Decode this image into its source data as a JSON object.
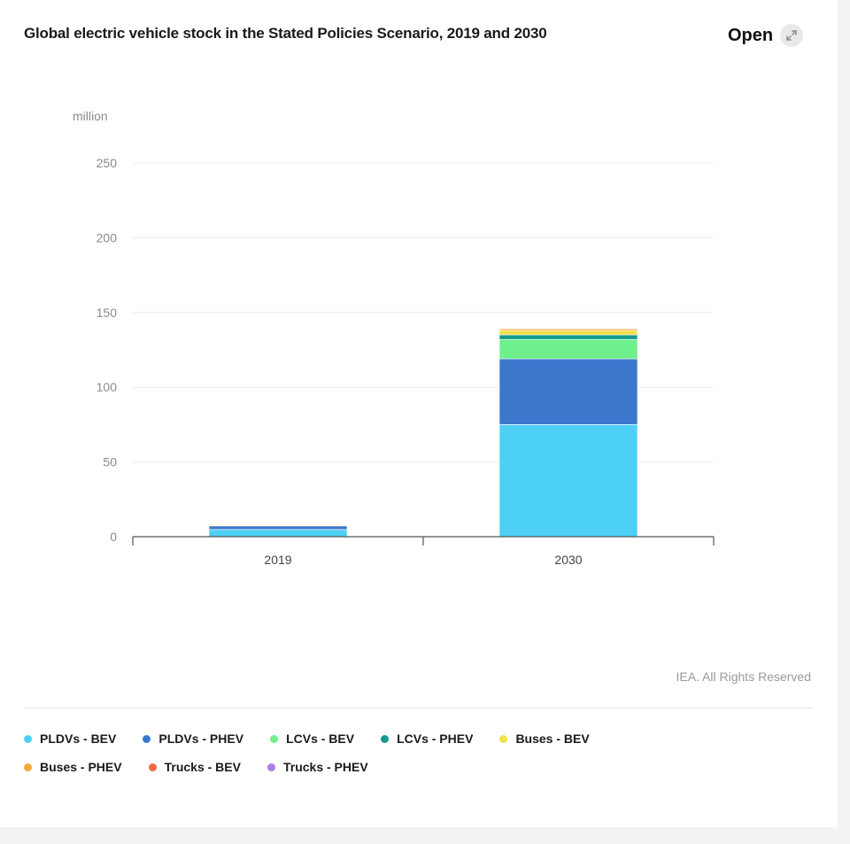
{
  "header": {
    "title": "Global electric vehicle stock in the Stated Policies Scenario, 2019 and 2030",
    "open_label": "Open",
    "open_icon": "expand-icon"
  },
  "credit": "IEA. All Rights Reserved",
  "chart_data": {
    "type": "bar",
    "stacked": true,
    "title": "Global electric vehicle stock in the Stated Policies Scenario, 2019 and 2030",
    "ylabel": "million",
    "ylim": [
      0,
      250
    ],
    "yticks": [
      "0",
      "50",
      "100",
      "150",
      "200",
      "250"
    ],
    "grid": true,
    "legend_position": "bottom",
    "categories": [
      "2019",
      "2030"
    ],
    "series": [
      {
        "name": "PLDVs - BEV",
        "color": "#4dd0f5",
        "values": [
          4.8,
          75
        ]
      },
      {
        "name": "PLDVs - PHEV",
        "color": "#3b78cc",
        "values": [
          2.4,
          44
        ]
      },
      {
        "name": "LCVs - BEV",
        "color": "#6ef08c",
        "values": [
          0.4,
          13
        ]
      },
      {
        "name": "LCVs - PHEV",
        "color": "#129a8e",
        "values": [
          0.05,
          3
        ]
      },
      {
        "name": "Buses - BEV",
        "color": "#f3e04a",
        "values": [
          0.5,
          3
        ]
      },
      {
        "name": "Buses - PHEV",
        "color": "#f5a83a",
        "values": [
          0.05,
          1
        ]
      },
      {
        "name": "Trucks - BEV",
        "color": "#f06a3e",
        "values": [
          0.01,
          0.5
        ]
      },
      {
        "name": "Trucks - PHEV",
        "color": "#a97de8",
        "values": [
          0.0,
          0.2
        ]
      }
    ]
  }
}
